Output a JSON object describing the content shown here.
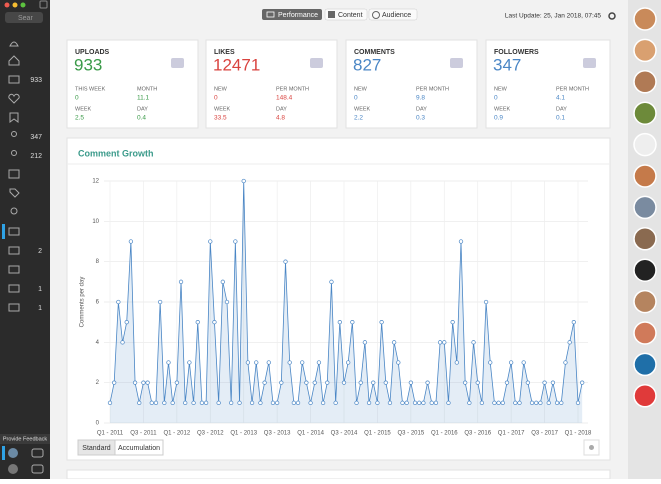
{
  "sidebar": {
    "search": "Sear",
    "counts": [
      933,
      347,
      212,
      2,
      1,
      1
    ],
    "feedback": "Provide Feedback"
  },
  "tabs": [
    "Performance",
    "Content",
    "Audience"
  ],
  "last_update": "Last Update: 25, Jan 2018, 07:45",
  "cards": [
    {
      "title": "UPLOADS",
      "value": 933,
      "color": "#3a9a48",
      "stats": [
        {
          "label": "THIS WEEK",
          "value": 0
        },
        {
          "label": "MONTH",
          "value": 11.1
        },
        {
          "label": "WEEK",
          "value": 2.5
        },
        {
          "label": "DAY",
          "value": 0.4
        }
      ]
    },
    {
      "title": "LIKES",
      "value": 12471,
      "color": "#d9433f",
      "stats": [
        {
          "label": "NEW",
          "value": 0
        },
        {
          "label": "PER MONTH",
          "value": 148.4
        },
        {
          "label": "WEEK",
          "value": 33.5
        },
        {
          "label": "DAY",
          "value": 4.8
        }
      ]
    },
    {
      "title": "COMMENTS",
      "value": 827,
      "color": "#4a86c5",
      "stats": [
        {
          "label": "NEW",
          "value": 0
        },
        {
          "label": "PER MONTH",
          "value": 9.8
        },
        {
          "label": "WEEK",
          "value": 2.2
        },
        {
          "label": "DAY",
          "value": 0.3
        }
      ]
    },
    {
      "title": "FOLLOWERS",
      "value": 347,
      "color": "#4a86c5",
      "stats": [
        {
          "label": "NEW",
          "value": 0
        },
        {
          "label": "PER MONTH",
          "value": 4.1
        },
        {
          "label": "WEEK",
          "value": 0.9
        },
        {
          "label": "DAY",
          "value": 0.1
        }
      ]
    }
  ],
  "buttons": [
    "Standard",
    "Accumulation"
  ],
  "chart_data": {
    "type": "line",
    "title": "Comment Growth",
    "y_label": "Comments per day",
    "color": "#4a86c5",
    "grid": true,
    "ylim": [
      0,
      12
    ],
    "yticks": [
      0,
      2,
      4,
      6,
      8,
      10,
      12
    ],
    "categories": [
      "Q1 - 2011",
      null,
      null,
      null,
      null,
      null,
      null,
      null,
      "Q3 - 2011",
      null,
      null,
      null,
      null,
      null,
      null,
      null,
      "Q1 - 2012",
      null,
      null,
      null,
      null,
      null,
      null,
      null,
      "Q3 - 2012",
      null,
      null,
      null,
      null,
      null,
      null,
      null,
      "Q1 - 2013",
      null,
      null,
      null,
      null,
      null,
      null,
      null,
      "Q3 - 2013",
      null,
      null,
      null,
      null,
      null,
      null,
      null,
      "Q1 - 2014",
      null,
      null,
      null,
      null,
      null,
      null,
      null,
      "Q3 - 2014",
      null,
      null,
      null,
      null,
      null,
      null,
      null,
      "Q1 - 2015",
      null,
      null,
      null,
      null,
      null,
      null,
      null,
      "Q3 - 2015",
      null,
      null,
      null,
      null,
      null,
      null,
      null,
      "Q1 - 2016",
      null,
      null,
      null,
      null,
      null,
      null,
      null,
      "Q3 - 2016",
      null,
      null,
      null,
      null,
      null,
      null,
      null,
      "Q1 - 2017",
      null,
      null,
      null,
      null,
      null,
      null,
      null,
      "Q3 - 2017",
      null,
      null,
      null,
      null,
      null,
      null,
      null,
      "Q1 - 2018",
      null
    ],
    "values": [
      1,
      2,
      6,
      4,
      5,
      9,
      2,
      1,
      2,
      2,
      1,
      1,
      6,
      1,
      3,
      1,
      2,
      7,
      1,
      3,
      1,
      5,
      1,
      1,
      9,
      5,
      1,
      7,
      6,
      1,
      9,
      1,
      12,
      3,
      1,
      3,
      1,
      2,
      3,
      1,
      1,
      2,
      8,
      3,
      1,
      1,
      3,
      2,
      1,
      2,
      3,
      1,
      2,
      7,
      1,
      5,
      2,
      3,
      5,
      1,
      2,
      4,
      1,
      2,
      1,
      5,
      2,
      1,
      4,
      3,
      1,
      1,
      2,
      1,
      1,
      1,
      2,
      1,
      1,
      4,
      4,
      1,
      5,
      3,
      9,
      2,
      1,
      4,
      2,
      1,
      6,
      3,
      1,
      1,
      1,
      2,
      3,
      1,
      1,
      3,
      2,
      1,
      1,
      1,
      2,
      1,
      2,
      1,
      1,
      3,
      4,
      5,
      1,
      2
    ]
  }
}
